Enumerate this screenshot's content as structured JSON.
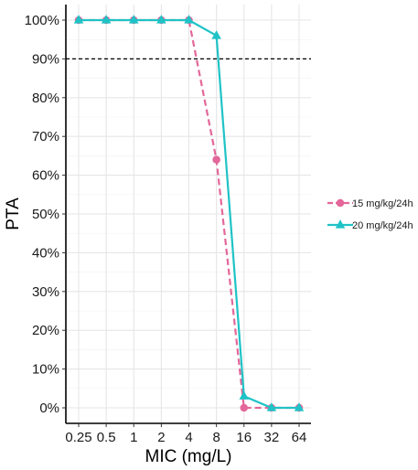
{
  "chart_data": {
    "type": "line",
    "xlabel": "MIC (mg/L)",
    "ylabel": "PTA",
    "categories": [
      "0.25",
      "0.5",
      "1",
      "2",
      "4",
      "8",
      "16",
      "32",
      "64"
    ],
    "ylim": [
      0,
      100
    ],
    "yticks": [
      "0%",
      "10%",
      "20%",
      "30%",
      "40%",
      "50%",
      "60%",
      "70%",
      "80%",
      "90%",
      "100%"
    ],
    "target_line": {
      "value": 90,
      "style": "dashed",
      "color": "#000000"
    },
    "grid": true,
    "legend_position": "right",
    "series": [
      {
        "name": "15 mg/kg/24h",
        "color": "#e3679a",
        "line_style": "dashed",
        "marker": "circle",
        "values": [
          100,
          100,
          100,
          100,
          100,
          64,
          0,
          0,
          0
        ]
      },
      {
        "name": "20 mg/kg/24h",
        "color": "#1fc3c6",
        "line_style": "solid",
        "marker": "triangle",
        "values": [
          100,
          100,
          100,
          100,
          100,
          96,
          3,
          0,
          0
        ]
      }
    ]
  }
}
